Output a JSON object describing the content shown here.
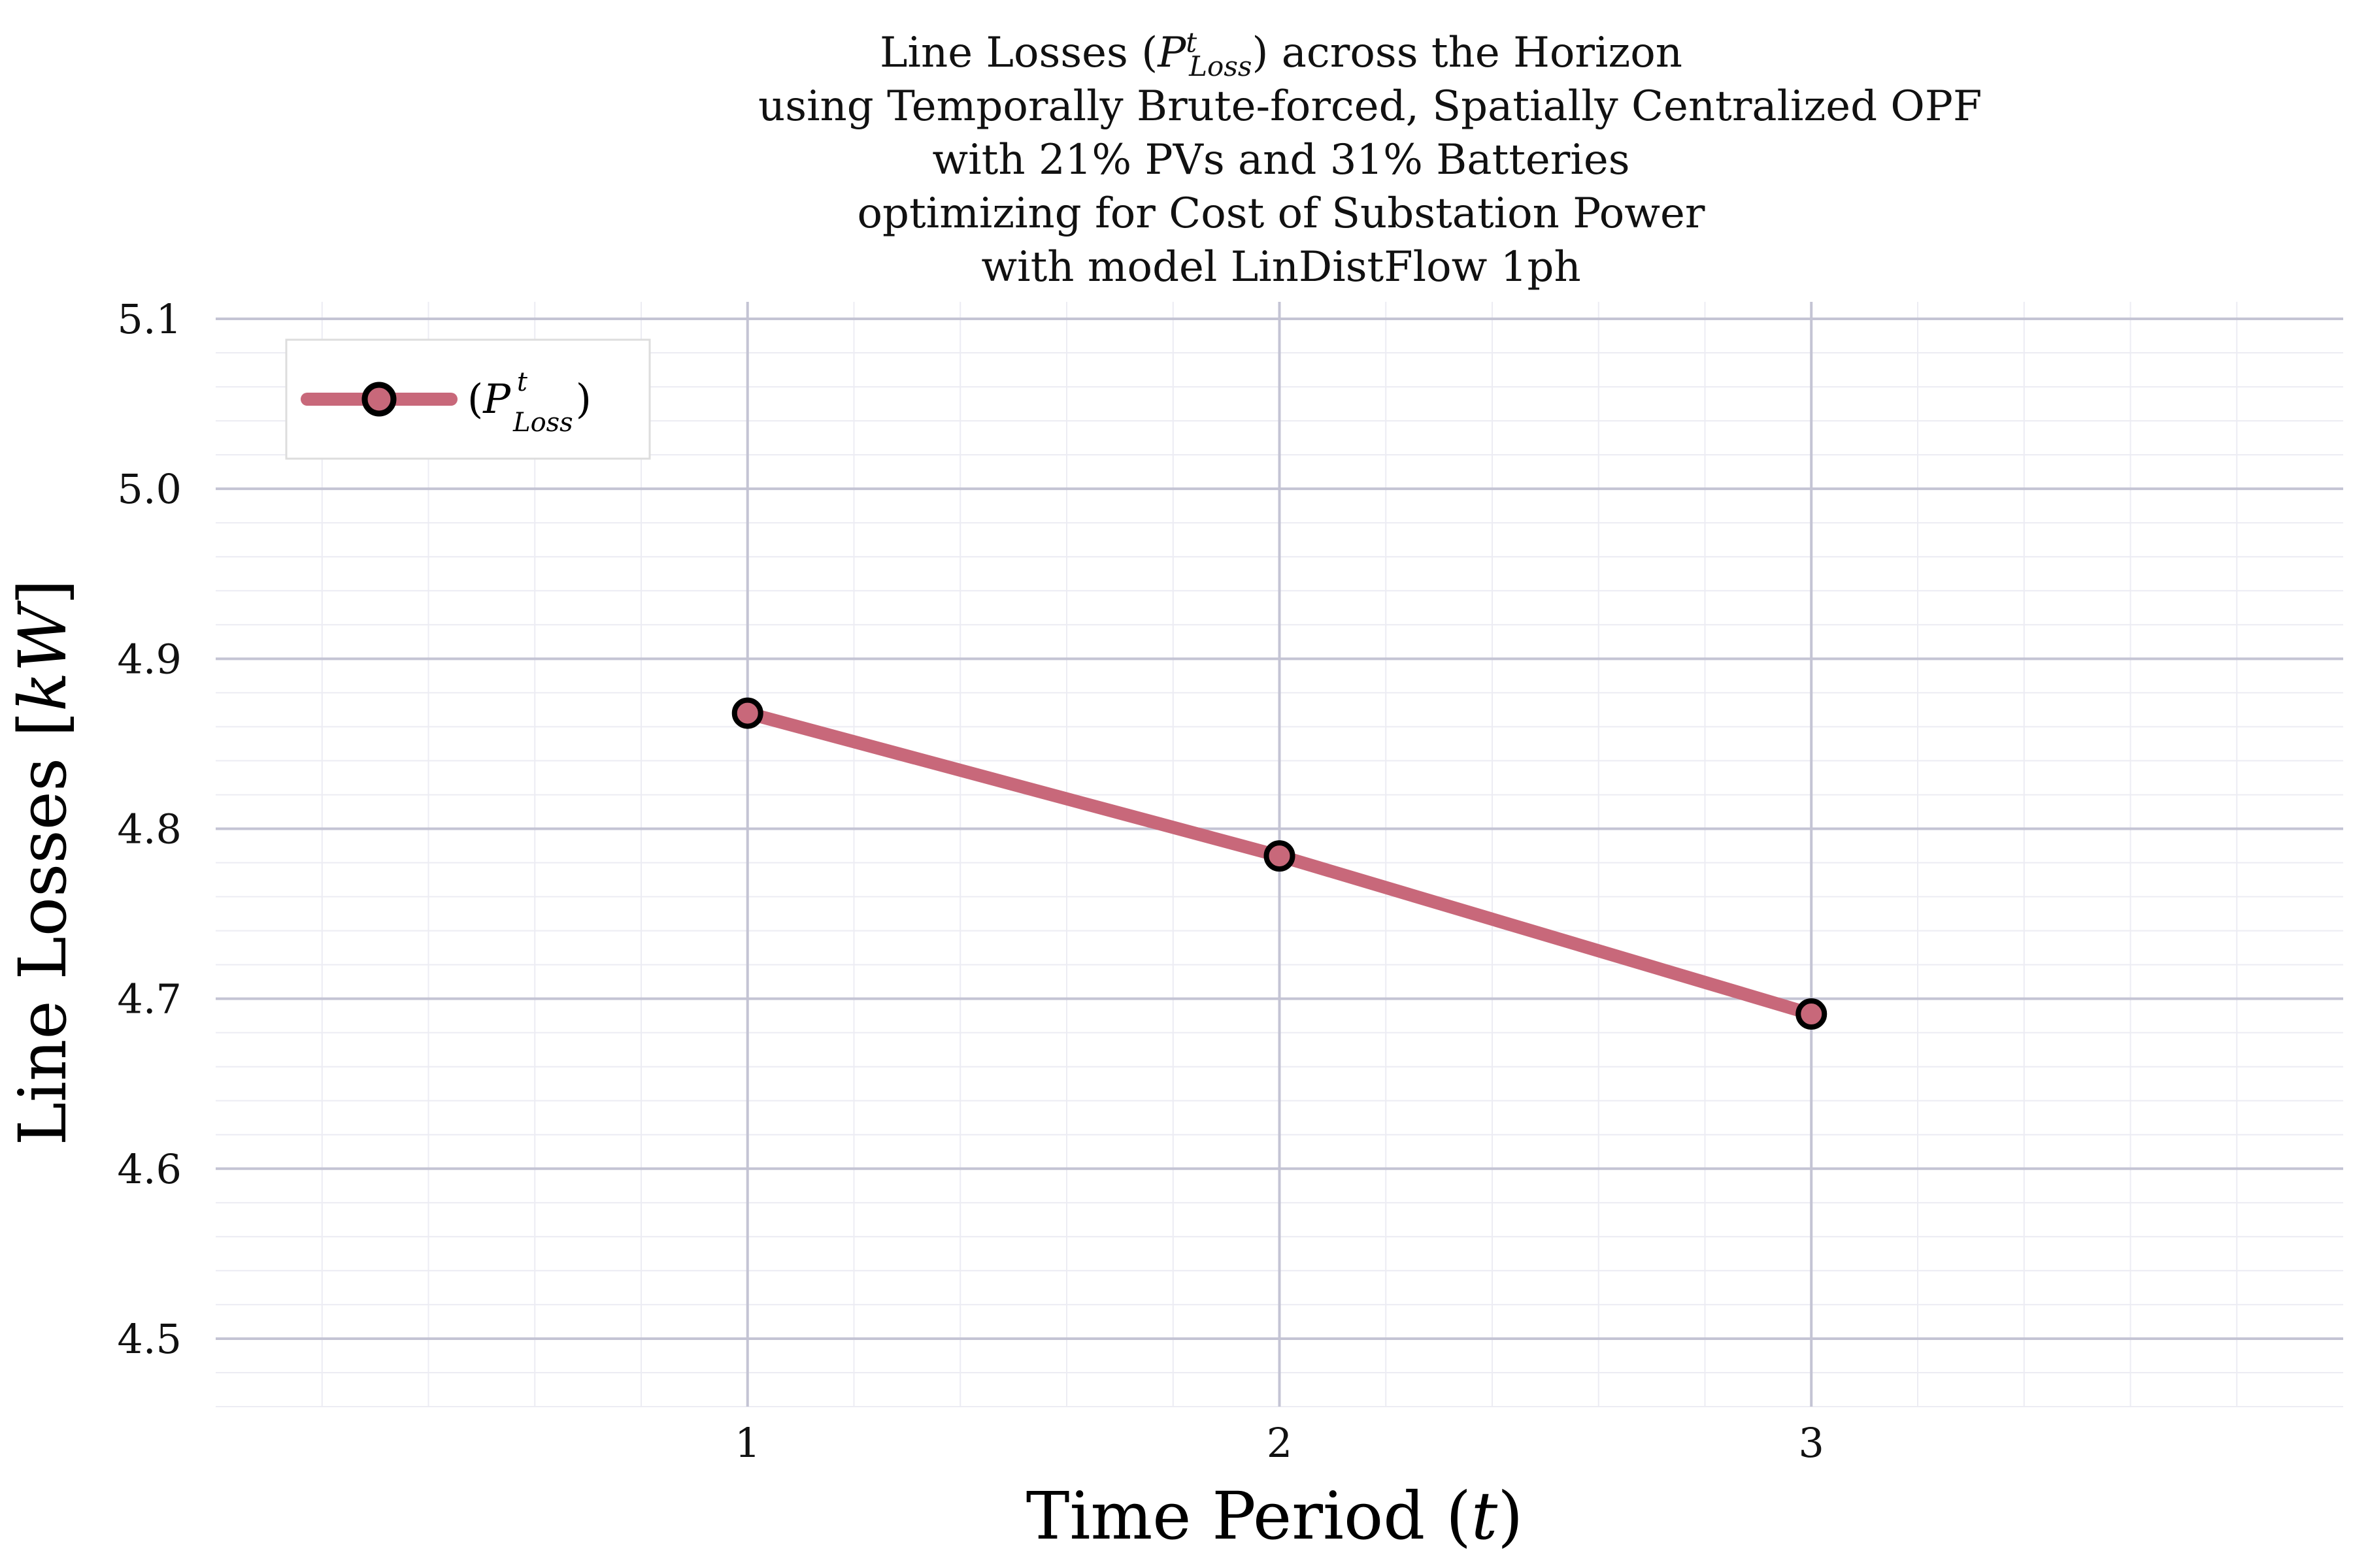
{
  "chart_data": {
    "type": "line",
    "title_lines": [
      "using Temporally Brute-forced, Spatially Centralized OPF",
      "with 21% PVs and 31% Batteries",
      "optimizing for Cost of Substation Power",
      "with model LinDistFlow 1ph"
    ],
    "title_first": {
      "prefix": "Line Losses (",
      "symbol": "P",
      "superscript": "t",
      "subscript": "Loss",
      "suffix": ") across the Horizon"
    },
    "xlabel_text": "Time Period (",
    "xlabel_symbol": "t",
    "xlabel_close": ")",
    "ylabel_text": "Line Losses [",
    "ylabel_symbol": "kW",
    "ylabel_close": "]",
    "x": [
      1,
      2,
      3
    ],
    "xlim": [
      0,
      4
    ],
    "x_ticks": [
      1,
      2,
      3
    ],
    "x_tick_labels": [
      "1",
      "2",
      "3"
    ],
    "ylim": [
      4.46,
      5.11
    ],
    "y_ticks": [
      4.5,
      4.6,
      4.7,
      4.8,
      4.9,
      5.0,
      5.1
    ],
    "y_tick_labels": [
      "4.5",
      "4.6",
      "4.7",
      "4.8",
      "4.9",
      "5.0",
      "5.1"
    ],
    "grid": true,
    "legend_position": "top-left",
    "series": [
      {
        "name": "(P^t_Loss)",
        "legend_open": "(",
        "legend_symbol": "P",
        "legend_sup": "t",
        "legend_sub": "Loss",
        "legend_close": ")",
        "values": [
          4.868,
          4.784,
          4.691
        ],
        "color": "#c8687a",
        "marker_edge": "#000000"
      }
    ]
  }
}
